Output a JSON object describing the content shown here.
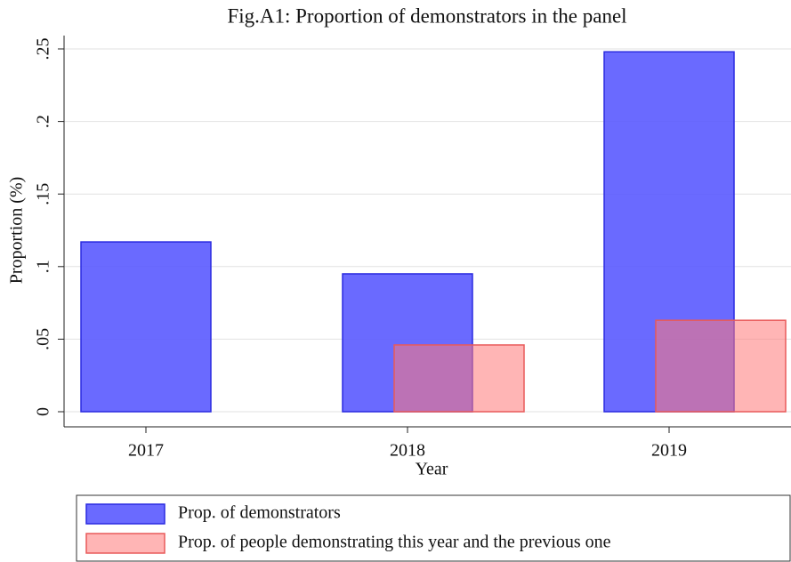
{
  "chart_data": {
    "type": "bar",
    "title": "Fig.A1: Proportion of demonstrators in the panel",
    "x_label": "Year",
    "y_label": "Proportion (%)",
    "categories": [
      "2017",
      "2018",
      "2019"
    ],
    "series": [
      {
        "name": "Prop. of demonstrators",
        "color": "#5a5aff",
        "values": [
          0.117,
          0.095,
          0.248
        ]
      },
      {
        "name": "Prop. of people demonstrating this year and the previous one",
        "color": "#ff7878",
        "values": [
          null,
          0.046,
          0.063
        ]
      }
    ],
    "ylim": [
      0,
      0.25
    ],
    "yticks": [
      0,
      {
        "value": 0.05,
        "label": ".05"
      },
      {
        "value": 0.1,
        "label": ".1"
      },
      {
        "value": 0.15,
        "label": ".15"
      },
      {
        "value": 0.2,
        "label": ".2"
      },
      {
        "value": 0.25,
        "label": ".25"
      }
    ],
    "grid": true
  }
}
